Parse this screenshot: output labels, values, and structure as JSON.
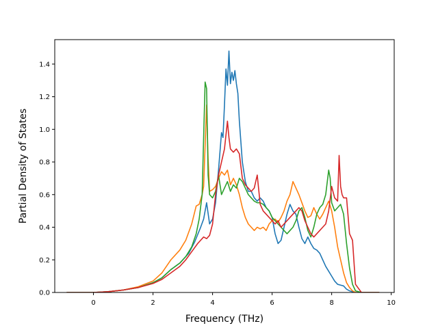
{
  "chart_data": {
    "type": "line",
    "title": "",
    "xlabel": "Frequency (THz)",
    "ylabel": "Partial Density of States",
    "xlim": [
      -1.3,
      10.1
    ],
    "ylim": [
      0.0,
      1.55
    ],
    "xticks": [
      0,
      2,
      4,
      6,
      8,
      10
    ],
    "yticks": [
      0.0,
      0.2,
      0.4,
      0.6,
      0.8,
      1.0,
      1.2,
      1.4
    ],
    "xtick_labels": [
      "0",
      "2",
      "4",
      "6",
      "8",
      "10"
    ],
    "ytick_labels": [
      "0.0",
      "0.2",
      "0.4",
      "0.6",
      "0.8",
      "1.0",
      "1.2",
      "1.4"
    ],
    "grid": false,
    "legend": "none",
    "series": [
      {
        "color": "#1f77b4",
        "x": [
          -0.9,
          0,
          0.5,
          1,
          1.5,
          2,
          2.3,
          2.6,
          2.9,
          3.2,
          3.4,
          3.6,
          3.7,
          3.8,
          3.9,
          4.0,
          4.1,
          4.2,
          4.3,
          4.35,
          4.4,
          4.45,
          4.5,
          4.55,
          4.6,
          4.65,
          4.7,
          4.75,
          4.8,
          4.85,
          4.9,
          5.0,
          5.1,
          5.2,
          5.3,
          5.4,
          5.5,
          5.6,
          5.7,
          5.8,
          5.9,
          6.0,
          6.1,
          6.2,
          6.3,
          6.4,
          6.5,
          6.6,
          6.7,
          6.8,
          6.9,
          7.0,
          7.1,
          7.2,
          7.3,
          7.4,
          7.5,
          7.6,
          7.7,
          7.8,
          7.9,
          8.0,
          8.1,
          8.2,
          8.3,
          8.4,
          8.5,
          8.6,
          8.7,
          8.8,
          9.0,
          9.6
        ],
        "y": [
          0,
          0,
          0.005,
          0.015,
          0.03,
          0.06,
          0.09,
          0.14,
          0.18,
          0.24,
          0.31,
          0.4,
          0.45,
          0.55,
          0.42,
          0.45,
          0.55,
          0.75,
          0.98,
          0.95,
          1.15,
          1.37,
          1.27,
          1.48,
          1.28,
          1.35,
          1.3,
          1.36,
          1.28,
          1.22,
          1.05,
          0.8,
          0.68,
          0.62,
          0.62,
          0.58,
          0.56,
          0.58,
          0.56,
          0.52,
          0.5,
          0.46,
          0.36,
          0.3,
          0.32,
          0.4,
          0.48,
          0.54,
          0.5,
          0.48,
          0.4,
          0.33,
          0.3,
          0.34,
          0.3,
          0.27,
          0.26,
          0.24,
          0.2,
          0.16,
          0.13,
          0.1,
          0.07,
          0.05,
          0.045,
          0.04,
          0.02,
          0.01,
          0.005,
          0,
          0,
          0
        ]
      },
      {
        "color": "#ff7f0e",
        "x": [
          -0.9,
          0,
          0.5,
          1,
          1.5,
          2,
          2.3,
          2.6,
          2.9,
          3.1,
          3.3,
          3.45,
          3.55,
          3.65,
          3.7,
          3.75,
          3.8,
          3.85,
          3.9,
          4.0,
          4.1,
          4.2,
          4.3,
          4.4,
          4.5,
          4.6,
          4.7,
          4.8,
          4.9,
          5.0,
          5.1,
          5.2,
          5.3,
          5.4,
          5.5,
          5.6,
          5.7,
          5.8,
          5.9,
          6.0,
          6.1,
          6.2,
          6.3,
          6.4,
          6.5,
          6.6,
          6.7,
          6.8,
          6.9,
          7.0,
          7.1,
          7.2,
          7.3,
          7.4,
          7.5,
          7.6,
          7.7,
          7.8,
          7.9,
          8.0,
          8.1,
          8.2,
          8.3,
          8.4,
          8.5,
          8.6,
          8.7,
          8.8,
          9.0,
          9.6
        ],
        "y": [
          0,
          0,
          0.005,
          0.015,
          0.035,
          0.07,
          0.12,
          0.2,
          0.26,
          0.32,
          0.42,
          0.53,
          0.54,
          0.6,
          0.65,
          0.9,
          1.15,
          0.82,
          0.62,
          0.63,
          0.65,
          0.7,
          0.74,
          0.72,
          0.75,
          0.66,
          0.7,
          0.66,
          0.6,
          0.52,
          0.46,
          0.42,
          0.4,
          0.38,
          0.4,
          0.39,
          0.4,
          0.38,
          0.42,
          0.44,
          0.45,
          0.43,
          0.46,
          0.5,
          0.56,
          0.6,
          0.68,
          0.64,
          0.6,
          0.55,
          0.5,
          0.46,
          0.47,
          0.52,
          0.48,
          0.45,
          0.48,
          0.52,
          0.56,
          0.5,
          0.4,
          0.28,
          0.2,
          0.12,
          0.06,
          0.03,
          0.01,
          0,
          0,
          0
        ]
      },
      {
        "color": "#2ca02c",
        "x": [
          -0.9,
          0,
          0.5,
          1,
          1.5,
          2,
          2.3,
          2.6,
          2.9,
          3.1,
          3.3,
          3.45,
          3.55,
          3.65,
          3.7,
          3.75,
          3.8,
          3.85,
          3.9,
          4.0,
          4.1,
          4.2,
          4.3,
          4.4,
          4.5,
          4.6,
          4.7,
          4.8,
          4.9,
          5.0,
          5.1,
          5.2,
          5.3,
          5.4,
          5.5,
          5.6,
          5.7,
          5.8,
          5.9,
          6.0,
          6.1,
          6.2,
          6.3,
          6.4,
          6.5,
          6.6,
          6.7,
          6.8,
          6.9,
          7.0,
          7.1,
          7.2,
          7.3,
          7.4,
          7.5,
          7.6,
          7.7,
          7.8,
          7.9,
          7.95,
          8.0,
          8.1,
          8.2,
          8.3,
          8.4,
          8.5,
          8.6,
          8.7,
          8.8,
          9.0,
          9.6
        ],
        "y": [
          0,
          0,
          0.005,
          0.015,
          0.03,
          0.06,
          0.09,
          0.14,
          0.18,
          0.22,
          0.28,
          0.36,
          0.45,
          0.6,
          0.95,
          1.29,
          1.25,
          0.72,
          0.6,
          0.58,
          0.62,
          0.72,
          0.6,
          0.64,
          0.68,
          0.62,
          0.66,
          0.64,
          0.7,
          0.68,
          0.64,
          0.6,
          0.58,
          0.56,
          0.55,
          0.55,
          0.54,
          0.52,
          0.5,
          0.46,
          0.44,
          0.42,
          0.4,
          0.38,
          0.36,
          0.38,
          0.4,
          0.44,
          0.5,
          0.52,
          0.46,
          0.38,
          0.34,
          0.4,
          0.48,
          0.52,
          0.54,
          0.6,
          0.75,
          0.7,
          0.55,
          0.5,
          0.52,
          0.54,
          0.48,
          0.3,
          0.15,
          0.05,
          0.01,
          0,
          0
        ]
      },
      {
        "color": "#d62728",
        "x": [
          -0.9,
          0,
          0.5,
          1,
          1.5,
          2,
          2.3,
          2.6,
          2.9,
          3.1,
          3.3,
          3.5,
          3.7,
          3.8,
          3.9,
          4.0,
          4.1,
          4.2,
          4.3,
          4.4,
          4.5,
          4.55,
          4.6,
          4.7,
          4.8,
          4.9,
          5.0,
          5.1,
          5.2,
          5.3,
          5.4,
          5.5,
          5.6,
          5.7,
          5.8,
          5.9,
          6.0,
          6.1,
          6.2,
          6.3,
          6.4,
          6.5,
          6.6,
          6.7,
          6.8,
          6.9,
          7.0,
          7.1,
          7.2,
          7.3,
          7.4,
          7.5,
          7.6,
          7.7,
          7.8,
          7.9,
          8.0,
          8.1,
          8.2,
          8.25,
          8.3,
          8.35,
          8.4,
          8.5,
          8.6,
          8.7,
          8.8,
          9.0,
          9.6
        ],
        "y": [
          0,
          0,
          0.005,
          0.015,
          0.03,
          0.055,
          0.08,
          0.12,
          0.16,
          0.2,
          0.25,
          0.3,
          0.34,
          0.33,
          0.35,
          0.42,
          0.6,
          0.72,
          0.8,
          0.88,
          1.05,
          0.95,
          0.88,
          0.86,
          0.88,
          0.85,
          0.7,
          0.66,
          0.64,
          0.62,
          0.64,
          0.72,
          0.54,
          0.5,
          0.48,
          0.46,
          0.44,
          0.42,
          0.44,
          0.4,
          0.42,
          0.44,
          0.46,
          0.48,
          0.5,
          0.52,
          0.5,
          0.44,
          0.4,
          0.36,
          0.34,
          0.36,
          0.38,
          0.4,
          0.42,
          0.5,
          0.65,
          0.58,
          0.56,
          0.84,
          0.65,
          0.6,
          0.58,
          0.58,
          0.36,
          0.32,
          0.05,
          0,
          0
        ]
      }
    ]
  }
}
